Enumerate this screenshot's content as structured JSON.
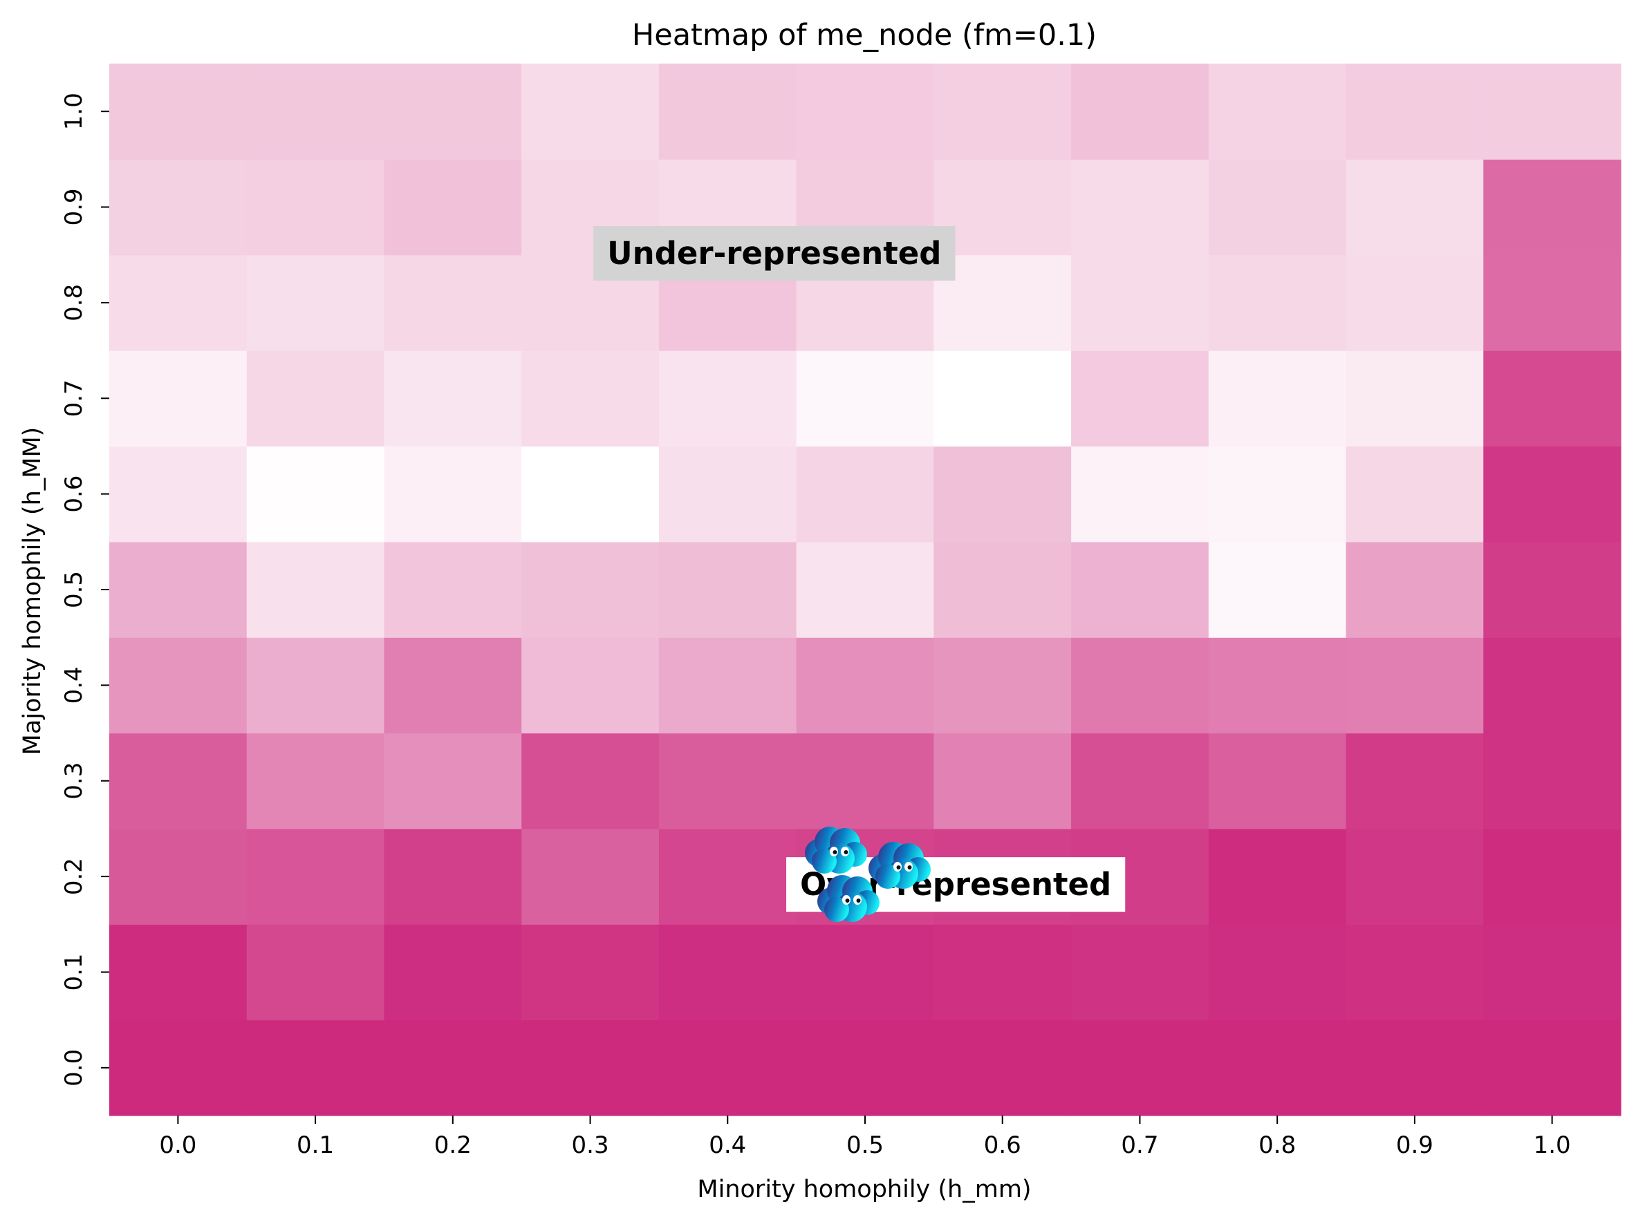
{
  "chart_data": {
    "type": "heatmap",
    "title": "Heatmap of me_node (fm=0.1)",
    "xlabel": "Minority homophily (h_mm)",
    "ylabel": "Majority homophily (h_MM)",
    "x": [
      "0.0",
      "0.1",
      "0.2",
      "0.3",
      "0.4",
      "0.5",
      "0.6",
      "0.7",
      "0.8",
      "0.9",
      "1.0"
    ],
    "y": [
      "0.0",
      "0.1",
      "0.2",
      "0.3",
      "0.4",
      "0.5",
      "0.6",
      "0.7",
      "0.8",
      "0.9",
      "1.0"
    ],
    "color_scale": {
      "low": "#ffffff",
      "high": "#cd2a7e"
    },
    "values": [
      [
        1.0,
        1.0,
        1.0,
        1.0,
        1.0,
        1.0,
        1.0,
        1.0,
        1.0,
        1.0,
        1.0
      ],
      [
        0.99,
        0.86,
        0.98,
        0.95,
        0.98,
        0.98,
        0.97,
        0.96,
        0.98,
        0.97,
        0.98
      ],
      [
        0.78,
        0.8,
        0.9,
        0.74,
        0.87,
        0.88,
        0.9,
        0.91,
        0.99,
        0.94,
        0.99
      ],
      [
        0.76,
        0.57,
        0.52,
        0.83,
        0.76,
        0.76,
        0.59,
        0.83,
        0.75,
        0.92,
        0.96
      ],
      [
        0.5,
        0.38,
        0.6,
        0.32,
        0.4,
        0.52,
        0.5,
        0.63,
        0.61,
        0.6,
        0.96
      ],
      [
        0.38,
        0.14,
        0.27,
        0.3,
        0.31,
        0.13,
        0.31,
        0.36,
        0.04,
        0.44,
        0.91
      ],
      [
        0.13,
        0.01,
        0.07,
        0.0,
        0.15,
        0.2,
        0.3,
        0.06,
        0.05,
        0.19,
        0.94
      ],
      [
        0.07,
        0.19,
        0.12,
        0.17,
        0.13,
        0.04,
        0.0,
        0.25,
        0.07,
        0.1,
        0.85
      ],
      [
        0.17,
        0.15,
        0.19,
        0.19,
        0.27,
        0.19,
        0.09,
        0.17,
        0.19,
        0.17,
        0.69
      ],
      [
        0.22,
        0.23,
        0.29,
        0.19,
        0.17,
        0.24,
        0.19,
        0.17,
        0.22,
        0.16,
        0.7
      ],
      [
        0.26,
        0.26,
        0.26,
        0.17,
        0.26,
        0.25,
        0.23,
        0.29,
        0.21,
        0.24,
        0.24
      ]
    ],
    "annotations": [
      {
        "text": "Under-represented",
        "x": 0.44,
        "y": 0.82,
        "background": "#d3d3d3"
      },
      {
        "text": "Over-represented",
        "x": 0.56,
        "y": 0.22,
        "background": "#ffffff"
      }
    ],
    "colorbar": false,
    "grid": false
  }
}
